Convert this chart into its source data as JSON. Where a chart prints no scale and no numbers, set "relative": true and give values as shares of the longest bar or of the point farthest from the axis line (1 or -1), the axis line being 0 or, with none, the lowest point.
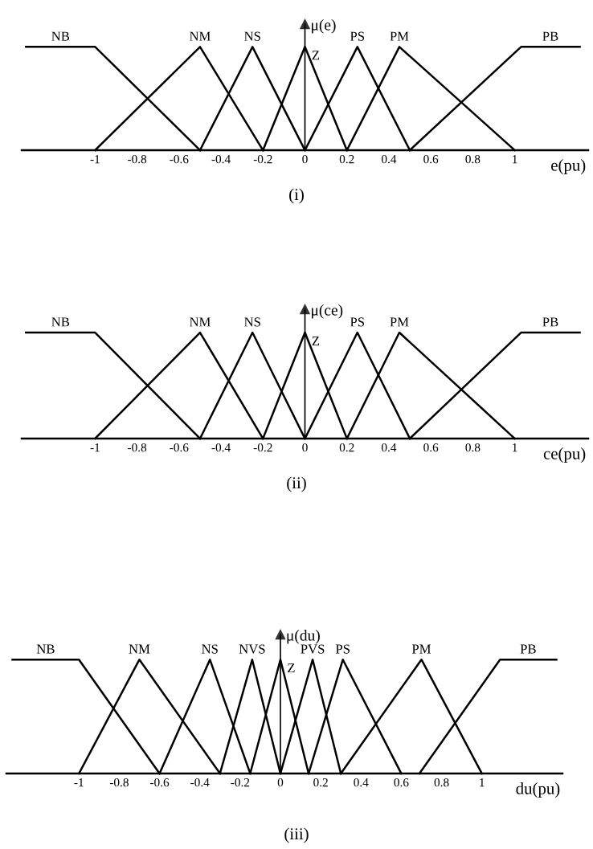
{
  "chart_data": [
    {
      "type": "line",
      "relative": true,
      "ylabel": "μ(e)",
      "xlabel": "e(pu)",
      "annotations": [
        "(i)"
      ],
      "xlim": [
        -1.35,
        1.35
      ],
      "xticks": [
        -1,
        -0.8,
        -0.6,
        -0.4,
        -0.2,
        0,
        0.2,
        0.4,
        0.6,
        0.8,
        1
      ],
      "legend": false,
      "marker": "none",
      "line_style": "solid",
      "series": [
        {
          "name": "NB",
          "color": "#000000",
          "x": [
            -1.33,
            -1,
            -0.5
          ],
          "values": [
            1,
            1,
            0
          ]
        },
        {
          "name": "NM",
          "color": "#000000",
          "x": [
            -1,
            -0.5,
            -0.2
          ],
          "values": [
            0,
            1,
            0
          ]
        },
        {
          "name": "NS",
          "color": "#000000",
          "x": [
            -0.5,
            -0.25,
            0
          ],
          "values": [
            0,
            1,
            0
          ]
        },
        {
          "name": "Z",
          "color": "#000000",
          "x": [
            -0.2,
            0,
            0.2
          ],
          "values": [
            0,
            1,
            0
          ]
        },
        {
          "name": "PS",
          "color": "#000000",
          "x": [
            0,
            0.25,
            0.5
          ],
          "values": [
            0,
            1,
            0
          ]
        },
        {
          "name": "PM",
          "color": "#000000",
          "x": [
            0.2,
            0.45,
            1
          ],
          "values": [
            0,
            1,
            0
          ]
        },
        {
          "name": "PB",
          "color": "#000000",
          "x": [
            0.5,
            1.03,
            1.31
          ],
          "values": [
            0,
            1,
            1
          ]
        }
      ]
    },
    {
      "type": "line",
      "relative": true,
      "ylabel": "μ(ce)",
      "xlabel": "ce(pu)",
      "annotations": [
        "(ii)"
      ],
      "xlim": [
        -1.35,
        1.35
      ],
      "xticks": [
        -1,
        -0.8,
        -0.6,
        -0.4,
        -0.2,
        0,
        0.2,
        0.4,
        0.6,
        0.8,
        1
      ],
      "legend": false,
      "marker": "none",
      "line_style": "solid",
      "series": [
        {
          "name": "NB",
          "color": "#000000",
          "x": [
            -1.33,
            -1,
            -0.5
          ],
          "values": [
            1,
            1,
            0
          ]
        },
        {
          "name": "NM",
          "color": "#000000",
          "x": [
            -1,
            -0.5,
            -0.2
          ],
          "values": [
            0,
            1,
            0
          ]
        },
        {
          "name": "NS",
          "color": "#000000",
          "x": [
            -0.5,
            -0.25,
            0
          ],
          "values": [
            0,
            1,
            0
          ]
        },
        {
          "name": "Z",
          "color": "#000000",
          "x": [
            -0.2,
            0,
            0.2
          ],
          "values": [
            0,
            1,
            0
          ]
        },
        {
          "name": "PS",
          "color": "#000000",
          "x": [
            0,
            0.25,
            0.5
          ],
          "values": [
            0,
            1,
            0
          ]
        },
        {
          "name": "PM",
          "color": "#000000",
          "x": [
            0.2,
            0.45,
            1
          ],
          "values": [
            0,
            1,
            0
          ]
        },
        {
          "name": "PB",
          "color": "#000000",
          "x": [
            0.5,
            1.03,
            1.31
          ],
          "values": [
            0,
            1,
            1
          ]
        }
      ]
    },
    {
      "type": "line",
      "relative": true,
      "ylabel": "μ(du)",
      "xlabel": "du(pu)",
      "annotations": [
        "(iii)"
      ],
      "xlim": [
        -1.36,
        1.4
      ],
      "xticks": [
        -1,
        -0.8,
        -0.6,
        -0.4,
        -0.2,
        0,
        0.2,
        0.4,
        0.6,
        0.8,
        1
      ],
      "legend": false,
      "marker": "none",
      "line_style": "solid",
      "series": [
        {
          "name": "NB",
          "color": "#000000",
          "x": [
            -1.33,
            -1,
            -0.6
          ],
          "values": [
            1,
            1,
            0
          ]
        },
        {
          "name": "NM",
          "color": "#000000",
          "x": [
            -1,
            -0.7,
            -0.3
          ],
          "values": [
            0,
            1,
            0
          ]
        },
        {
          "name": "NS",
          "color": "#000000",
          "x": [
            -0.6,
            -0.35,
            -0.15
          ],
          "values": [
            0,
            1,
            0
          ]
        },
        {
          "name": "NVS",
          "color": "#000000",
          "x": [
            -0.3,
            -0.14,
            0
          ],
          "values": [
            0,
            1,
            0
          ]
        },
        {
          "name": "Z",
          "color": "#000000",
          "x": [
            -0.15,
            0,
            0.14
          ],
          "values": [
            0,
            1,
            0
          ]
        },
        {
          "name": "PVS",
          "color": "#000000",
          "x": [
            0,
            0.16,
            0.3
          ],
          "values": [
            0,
            1,
            0
          ]
        },
        {
          "name": "PS",
          "color": "#000000",
          "x": [
            0.14,
            0.31,
            0.6
          ],
          "values": [
            0,
            1,
            0
          ]
        },
        {
          "name": "PM",
          "color": "#000000",
          "x": [
            0.3,
            0.7,
            1
          ],
          "values": [
            0,
            1,
            0
          ]
        },
        {
          "name": "PB",
          "color": "#000000",
          "x": [
            0.69,
            1.09,
            1.37
          ],
          "values": [
            0,
            1,
            1
          ]
        }
      ]
    }
  ]
}
